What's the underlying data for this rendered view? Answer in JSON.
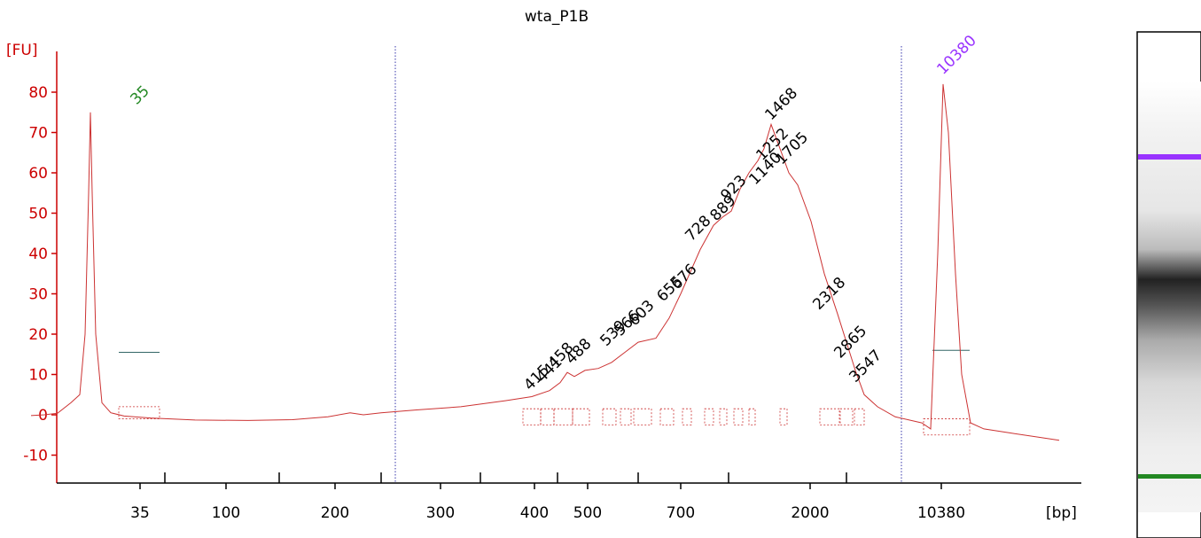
{
  "chart_data": {
    "type": "line",
    "title": "wta_P1B",
    "ylabel": "[FU]",
    "xlabel": "[bp]",
    "ylim": [
      -16,
      90
    ],
    "yticks": [
      -10,
      0,
      10,
      20,
      30,
      40,
      50,
      60,
      70,
      80
    ],
    "xtick_labels": [
      "35",
      "100",
      "200",
      "300",
      "400",
      "500",
      "700",
      "2000",
      "10380"
    ],
    "colors": {
      "axis": "#cc0000",
      "trace": "#cc3333",
      "markers": "#336666",
      "divider": "#3333aa",
      "ladder_marker_low": "#228822",
      "ladder_marker_high": "#9933ff"
    },
    "ladder_markers": [
      {
        "label": "35",
        "color": "#228822",
        "peak_fu": 75
      },
      {
        "label": "10380",
        "color": "#9933ff",
        "peak_fu": 82
      }
    ],
    "series": [
      {
        "values": [
          [
            35,
            -0.2
          ],
          [
            50,
            0
          ],
          [
            65,
            0.4
          ],
          [
            80,
            3
          ],
          [
            90,
            5
          ],
          [
            96,
            20
          ],
          [
            100,
            55
          ],
          [
            102,
            75
          ],
          [
            104,
            55
          ],
          [
            108,
            20
          ],
          [
            115,
            3
          ],
          [
            125,
            0.5
          ],
          [
            140,
            -0.3
          ],
          [
            170,
            -0.8
          ],
          [
            220,
            -1.3
          ],
          [
            280,
            -1.4
          ],
          [
            330,
            -1.2
          ],
          [
            370,
            -0.5
          ],
          [
            395,
            0.5
          ],
          [
            410,
            0
          ],
          [
            430,
            0.5
          ],
          [
            470,
            1.2
          ],
          [
            520,
            2
          ],
          [
            570,
            3.5
          ],
          [
            600,
            4.5
          ],
          [
            620,
            6
          ],
          [
            632,
            8
          ],
          [
            640,
            10.5
          ],
          [
            648,
            9.5
          ],
          [
            660,
            11
          ],
          [
            675,
            11.5
          ],
          [
            690,
            13
          ],
          [
            705,
            15.5
          ],
          [
            720,
            18
          ],
          [
            740,
            19
          ],
          [
            755,
            24
          ],
          [
            768,
            30
          ],
          [
            778,
            35
          ],
          [
            790,
            41
          ],
          [
            805,
            47
          ],
          [
            815,
            49
          ],
          [
            825,
            50.5
          ],
          [
            835,
            56
          ],
          [
            845,
            60
          ],
          [
            855,
            63
          ],
          [
            862,
            66
          ],
          [
            870,
            72
          ],
          [
            880,
            66
          ],
          [
            890,
            60
          ],
          [
            900,
            57
          ],
          [
            915,
            48
          ],
          [
            930,
            35
          ],
          [
            945,
            25
          ],
          [
            955,
            18
          ],
          [
            965,
            11
          ],
          [
            975,
            5
          ],
          [
            990,
            2
          ],
          [
            1010,
            -0.5
          ],
          [
            1040,
            -2
          ],
          [
            1050,
            -3.5
          ],
          [
            1058,
            40
          ],
          [
            1064,
            82
          ],
          [
            1070,
            70
          ],
          [
            1078,
            35
          ],
          [
            1085,
            10
          ],
          [
            1095,
            -2
          ],
          [
            1110,
            -3.5
          ],
          [
            1140,
            -4.5
          ],
          [
            1170,
            -5.5
          ],
          [
            1195,
            -6.3
          ]
        ]
      }
    ],
    "peak_labels": [
      {
        "label": "415",
        "fu": 5
      },
      {
        "label": "441",
        "fu": 7
      },
      {
        "label": "458",
        "fu": 10.5
      },
      {
        "label": "488",
        "fu": 11.5
      },
      {
        "label": "539",
        "fu": 16
      },
      {
        "label": "566",
        "fu": 18.5
      },
      {
        "label": "603",
        "fu": 21
      },
      {
        "label": "655",
        "fu": 27
      },
      {
        "label": "676",
        "fu": 30
      },
      {
        "label": "728",
        "fu": 42
      },
      {
        "label": "889",
        "fu": 47
      },
      {
        "label": "923",
        "fu": 52
      },
      {
        "label": "1140",
        "fu": 56
      },
      {
        "label": "1252",
        "fu": 62
      },
      {
        "label": "1468",
        "fu": 72
      },
      {
        "label": "1705",
        "fu": 61
      },
      {
        "label": "2318",
        "fu": 25
      },
      {
        "label": "2865",
        "fu": 13
      },
      {
        "label": "3547",
        "fu": 7
      }
    ]
  }
}
